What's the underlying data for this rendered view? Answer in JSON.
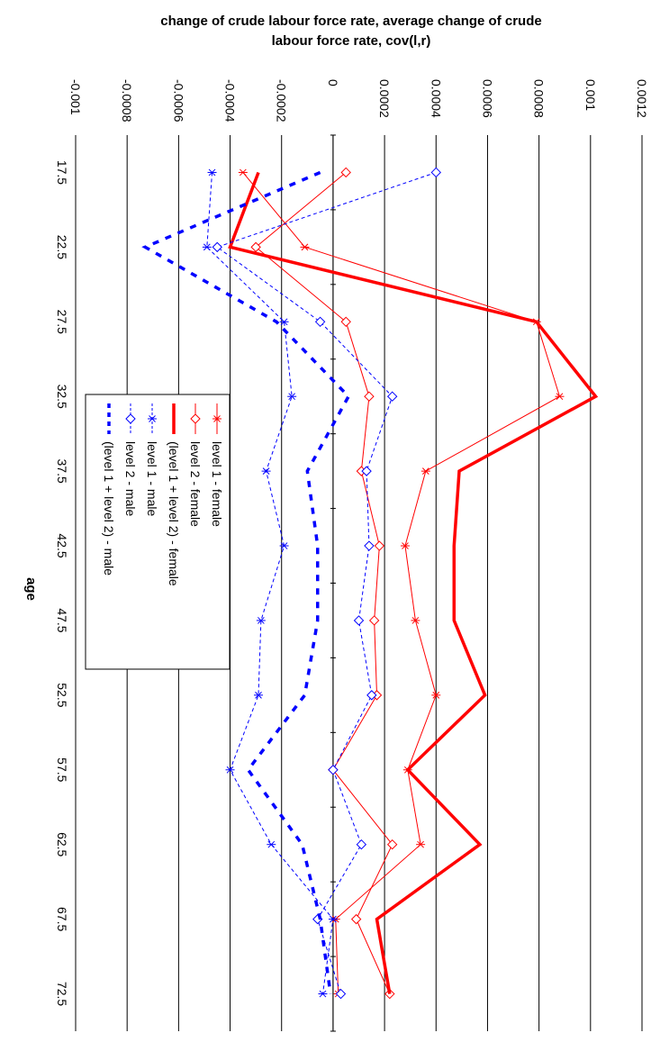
{
  "chart_data": {
    "type": "line",
    "title_lines": [
      "change of crude labour force rate, average change of crude",
      "labour force rate, cov(l,r)"
    ],
    "xlabel": "age",
    "ylabel": "",
    "categories": [
      "17.5",
      "22.5",
      "27.5",
      "32.5",
      "37.5",
      "42.5",
      "47.5",
      "52.5",
      "57.5",
      "62.5",
      "67.5",
      "72.5"
    ],
    "y_ticks": [
      -0.001,
      -0.0008,
      -0.0006,
      -0.0004,
      -0.0002,
      0,
      0.0002,
      0.0004,
      0.0006,
      0.0008,
      0.001,
      0.0012
    ],
    "y_tick_labels": [
      "-0.001",
      "-0.0008",
      "-0.0006",
      "-0.0004",
      "-0.0002",
      "0",
      "0.0002",
      "0.0004",
      "0.0006",
      "0.0008",
      "0.001",
      "0.0012"
    ],
    "ylim": [
      -0.001,
      0.0012
    ],
    "orientation": "rotated 90 degrees clockwise",
    "grid": "horizontal major gridlines",
    "legend": "left-middle",
    "series": [
      {
        "name": "level 1 - female",
        "color": "#ff0000",
        "line": "thin solid",
        "marker": "star",
        "values": [
          -0.00035,
          -0.00011,
          0.00079,
          0.00088,
          0.00036,
          0.00028,
          0.00032,
          0.0004,
          0.00029,
          0.00034,
          1e-05,
          2e-05
        ]
      },
      {
        "name": "level 2 - female",
        "color": "#ff0000",
        "line": "thin solid",
        "marker": "diamond",
        "values": [
          5e-05,
          -0.0003,
          5e-05,
          0.00014,
          0.00011,
          0.00018,
          0.00016,
          0.00017,
          0.0,
          0.00023,
          9e-05,
          0.00022
        ]
      },
      {
        "name": "(level 1 + level 2) - female",
        "color": "#ff0000",
        "line": "thick solid",
        "marker": "none",
        "values": [
          -0.00029,
          -0.0004,
          0.00079,
          0.00102,
          0.00049,
          0.00047,
          0.00047,
          0.00059,
          0.00029,
          0.00057,
          0.00017,
          0.00022
        ]
      },
      {
        "name": "level 1 - male",
        "color": "#0000ff",
        "line": "thin dashed",
        "marker": "star",
        "values": [
          -0.00047,
          -0.00049,
          -0.00019,
          -0.00016,
          -0.00026,
          -0.00019,
          -0.00028,
          -0.00029,
          -0.0004,
          -0.00024,
          0.0,
          -4e-05
        ]
      },
      {
        "name": "level 2 - male",
        "color": "#0000ff",
        "line": "thin dashed",
        "marker": "diamond",
        "values": [
          0.0004,
          -0.00045,
          -5e-05,
          0.00023,
          0.00013,
          0.00014,
          0.0001,
          0.00015,
          0.0,
          0.00011,
          -6e-05,
          3e-05
        ]
      },
      {
        "name": "(level 1 + level 2) - male",
        "color": "#0000ff",
        "line": "thick dashed",
        "marker": "none",
        "values": [
          -5e-05,
          -0.00073,
          -0.00022,
          6e-05,
          -0.0001,
          -6e-05,
          -6e-05,
          -0.00011,
          -0.00033,
          -0.00012,
          -5e-05,
          -1e-05
        ]
      }
    ]
  }
}
